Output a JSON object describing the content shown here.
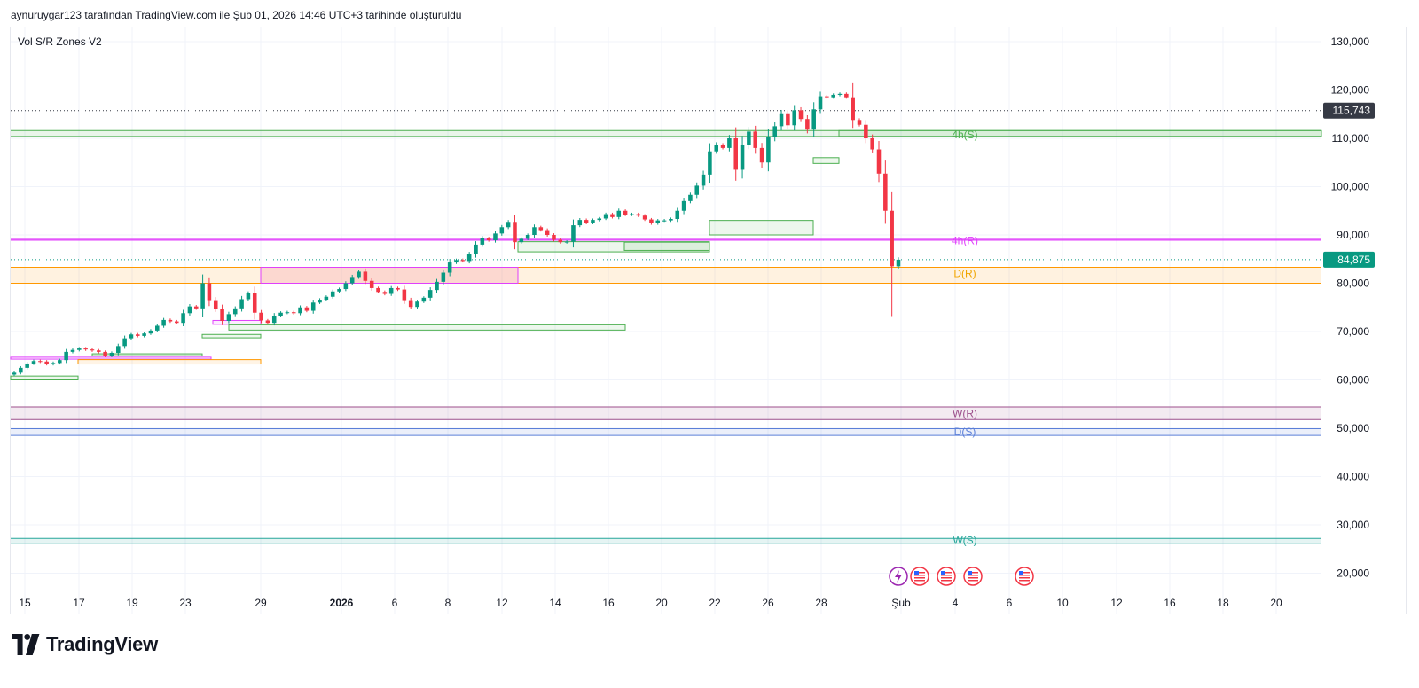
{
  "header": {
    "caption": "aynuruygar123 tarafından TradingView.com ile Şub 01, 2026 14:46 UTC+3 tarihinde oluşturuldu"
  },
  "indicator": {
    "name": "Vol S/R Zones V2"
  },
  "brand": {
    "logo_text": "TradingView"
  },
  "chart_data": {
    "type": "candlestick",
    "title": "",
    "y_axis_ticks": [
      "130,000",
      "120,000",
      "110,000",
      "100,000",
      "90,000",
      "80,000",
      "70,000",
      "60,000",
      "50,000",
      "40,000",
      "30,000",
      "20,000"
    ],
    "x_axis_ticks": [
      "15",
      "17",
      "19",
      "23",
      "29",
      "2026",
      "6",
      "8",
      "12",
      "14",
      "16",
      "20",
      "22",
      "26",
      "28",
      "Şub",
      "4",
      "6",
      "10",
      "12",
      "16",
      "18",
      "20"
    ],
    "ylim": [
      17000,
      133500
    ],
    "grid": true,
    "price_labels": [
      {
        "label": "115,743",
        "value": 115743,
        "color": "#363a45"
      },
      {
        "label": "84,875",
        "value": 84875,
        "color": "#089981"
      }
    ],
    "zone_labels": [
      {
        "text": "4h(S)",
        "value": 110700,
        "color": "#4caf50"
      },
      {
        "text": "4h(R)",
        "value": 88800,
        "color": "#e040fb"
      },
      {
        "text": "D(R)",
        "value": 82000,
        "color": "#f0a500"
      },
      {
        "text": "W(R)",
        "value": 53000,
        "color": "#9c4f8b"
      },
      {
        "text": "D(S)",
        "value": 49300,
        "color": "#5b7fd8"
      },
      {
        "text": "W(S)",
        "value": 26800,
        "color": "#26a69a"
      }
    ],
    "zones": [
      {
        "type": "D(R)",
        "low": 80000,
        "high": 83300,
        "color": "#ff9800"
      },
      {
        "type": "W(R)",
        "low": 51800,
        "high": 54400,
        "color": "#9c4f8b"
      },
      {
        "type": "D(S)",
        "low": 48500,
        "high": 49900,
        "color": "#5b7fd8"
      },
      {
        "type": "W(S)",
        "low": 26200,
        "high": 27200,
        "color": "#26a69a"
      },
      {
        "type": "4h(S)",
        "low": 110400,
        "high": 111600,
        "color": "#4caf50"
      },
      {
        "type": "4h(R)",
        "low": 88900,
        "high": 89100,
        "color": "#e040fb"
      }
    ],
    "closes": [
      61500,
      62500,
      63400,
      63900,
      63800,
      63300,
      63500,
      64100,
      65800,
      66200,
      66500,
      66300,
      66100,
      65800,
      65000,
      65600,
      67000,
      68600,
      69400,
      69100,
      69600,
      70200,
      71200,
      72400,
      72100,
      71800,
      73800,
      75200,
      74800,
      80000,
      76500,
      74700,
      72200,
      73600,
      74800,
      76700,
      77900,
      73900,
      72300,
      71800,
      73300,
      73900,
      74000,
      73800,
      75000,
      74300,
      76000,
      76600,
      77200,
      78300,
      78800,
      80000,
      81300,
      82400,
      80500,
      79000,
      78200,
      77800,
      79000,
      78700,
      76500,
      75100,
      76200,
      77000,
      78600,
      80300,
      82200,
      84300,
      84800,
      84600,
      86000,
      88000,
      89300,
      88900,
      90300,
      91600,
      92700,
      88500,
      89200,
      90000,
      91600,
      91000,
      90000,
      89000,
      88500,
      88600,
      92000,
      93100,
      92500,
      93100,
      93400,
      94300,
      93700,
      95000,
      94200,
      94300,
      94000,
      93200,
      92400,
      93000,
      93000,
      93300,
      95000,
      97000,
      98300,
      100200,
      102500,
      107300,
      108700,
      108000,
      110000,
      103500,
      108700,
      111400,
      108000,
      105000,
      110200,
      112500,
      115000,
      112700,
      115800,
      114000,
      111800,
      116000,
      118700,
      118500,
      119000,
      119200,
      118500,
      113800,
      112800,
      110000,
      107700,
      102700,
      95000,
      83500,
      84875
    ]
  }
}
